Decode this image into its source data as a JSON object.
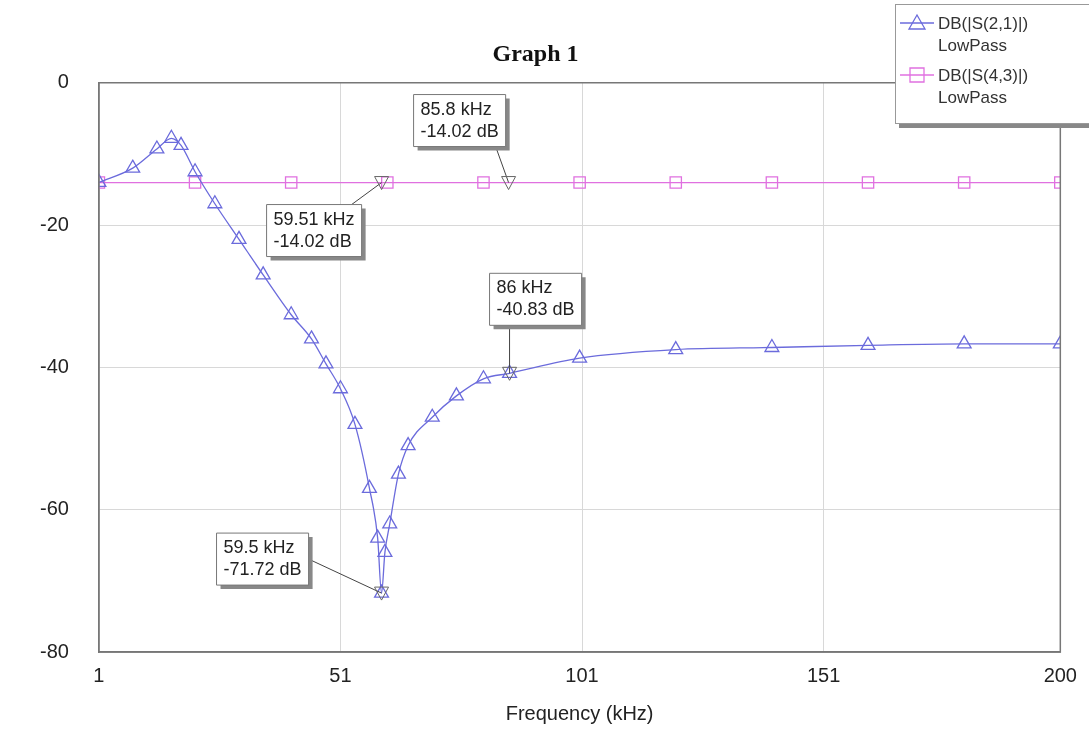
{
  "chart_data": {
    "type": "line",
    "title": "Graph 1",
    "xlabel": "Frequency (kHz)",
    "xlim": [
      1,
      200
    ],
    "xticks": [
      1,
      51,
      101,
      151,
      200
    ],
    "ylim": [
      -80,
      0
    ],
    "yticks": [
      -80,
      -60,
      -40,
      -20,
      0
    ],
    "grid": true,
    "legend": "top right",
    "series": [
      {
        "name": "DB(|S(2,1)|)\nLowPass",
        "color": "#6b6bdc",
        "marker": "triangle",
        "x": [
          1,
          8,
          13,
          16,
          18,
          20.9,
          25,
          30,
          35,
          40.8,
          45,
          48,
          51,
          54,
          57,
          58.7,
          59.5,
          60.2,
          61.2,
          63,
          65,
          70,
          75,
          80.6,
          86,
          100.5,
          120.4,
          140.3,
          160.2,
          180.1,
          200
        ],
        "values": [
          -14,
          -12,
          -9.3,
          -7.8,
          -8.8,
          -12.5,
          -17,
          -22,
          -27,
          -32.6,
          -36,
          -39.5,
          -43,
          -48,
          -57,
          -64,
          -71.72,
          -66,
          -62,
          -55,
          -51,
          -47,
          -44,
          -41.6,
          -40.83,
          -38.7,
          -37.5,
          -37.2,
          -36.9,
          -36.7,
          -36.7
        ]
      },
      {
        "name": "DB(|S(4,3)|)\nLowPass",
        "color": "#e070e0",
        "marker": "square",
        "x": [
          1,
          20.9,
          40.8,
          60.7,
          80.6,
          100.5,
          120.4,
          140.3,
          160.2,
          180.1,
          200
        ],
        "values": [
          -14.02,
          -14.02,
          -14.02,
          -14.02,
          -14.02,
          -14.02,
          -14.02,
          -14.02,
          -14.02,
          -14.02,
          -14.02
        ]
      }
    ],
    "annotations": [
      {
        "text": "85.8 kHz\n-14.02 dB",
        "x": 85.8,
        "y": -14.02
      },
      {
        "text": "59.51 kHz\n-14.02 dB",
        "x": 59.51,
        "y": -14.02
      },
      {
        "text": "86 kHz\n-40.83 dB",
        "x": 86,
        "y": -40.83
      },
      {
        "text": "59.5 kHz\n-71.72 dB",
        "x": 59.5,
        "y": -71.72
      }
    ]
  }
}
